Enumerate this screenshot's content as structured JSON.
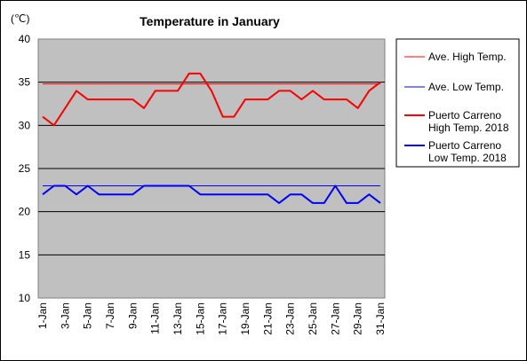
{
  "chart_data": {
    "type": "line",
    "title": "Temperature in January",
    "unit_label": "(℃)",
    "xlabel": "",
    "ylabel": "",
    "ylim": [
      10,
      40
    ],
    "yticks": [
      10,
      15,
      20,
      25,
      30,
      35,
      40
    ],
    "grid": true,
    "legend_position": "right",
    "categories": [
      "1-Jan",
      "2-Jan",
      "3-Jan",
      "4-Jan",
      "5-Jan",
      "6-Jan",
      "7-Jan",
      "8-Jan",
      "9-Jan",
      "10-Jan",
      "11-Jan",
      "12-Jan",
      "13-Jan",
      "14-Jan",
      "15-Jan",
      "16-Jan",
      "17-Jan",
      "18-Jan",
      "19-Jan",
      "20-Jan",
      "21-Jan",
      "22-Jan",
      "23-Jan",
      "24-Jan",
      "25-Jan",
      "26-Jan",
      "27-Jan",
      "28-Jan",
      "29-Jan",
      "30-Jan",
      "31-Jan"
    ],
    "tick_labels": [
      "1-Jan",
      "3-Jan",
      "5-Jan",
      "7-Jan",
      "9-Jan",
      "11-Jan",
      "13-Jan",
      "15-Jan",
      "17-Jan",
      "19-Jan",
      "21-Jan",
      "23-Jan",
      "25-Jan",
      "27-Jan",
      "29-Jan",
      "31-Jan"
    ],
    "series": [
      {
        "name": "Ave. High Temp.",
        "color": "#ff0000",
        "style": "thin",
        "values": [
          34.8,
          34.8,
          34.8,
          34.8,
          34.8,
          34.8,
          34.8,
          34.8,
          34.8,
          34.8,
          34.8,
          34.8,
          34.8,
          34.8,
          34.8,
          34.8,
          34.8,
          34.8,
          34.8,
          34.8,
          34.8,
          34.8,
          34.8,
          34.8,
          34.8,
          34.8,
          34.8,
          34.8,
          34.8,
          34.8,
          34.8
        ]
      },
      {
        "name": "Ave. Low Temp.",
        "color": "#0000ff",
        "style": "thin",
        "values": [
          23,
          23,
          23,
          23,
          23,
          23,
          23,
          23,
          23,
          23,
          23,
          23,
          23,
          23,
          23,
          23,
          23,
          23,
          23,
          23,
          23,
          23,
          23,
          23,
          23,
          23,
          23,
          23,
          23,
          23,
          23
        ]
      },
      {
        "name": "Puerto Carreno High Temp. 2018",
        "legend_lines": [
          "Puerto Carreno",
          "High Temp. 2018"
        ],
        "color": "#ff0000",
        "style": "thick",
        "values": [
          31,
          30,
          32,
          34,
          33,
          33,
          33,
          33,
          33,
          32,
          34,
          34,
          34,
          36,
          36,
          34,
          31,
          31,
          33,
          33,
          33,
          34,
          34,
          33,
          34,
          33,
          33,
          33,
          32,
          34,
          35
        ]
      },
      {
        "name": "Puerto Carreno Low Temp. 2018",
        "legend_lines": [
          "Puerto Carreno",
          "Low Temp. 2018"
        ],
        "color": "#0000ff",
        "style": "thick",
        "values": [
          22,
          23,
          23,
          22,
          23,
          22,
          22,
          22,
          22,
          23,
          23,
          23,
          23,
          23,
          22,
          22,
          22,
          22,
          22,
          22,
          22,
          21,
          22,
          22,
          21,
          21,
          23,
          21,
          21,
          22,
          21
        ]
      }
    ]
  }
}
